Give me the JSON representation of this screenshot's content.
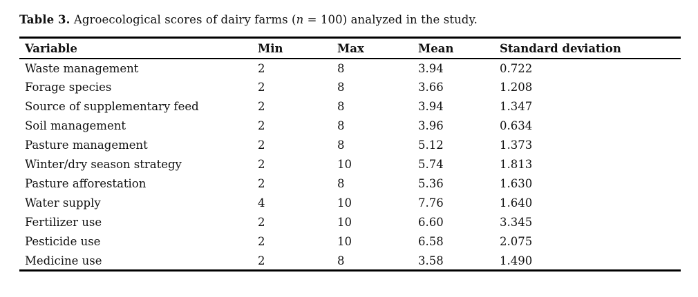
{
  "caption": {
    "label": "Table 3.",
    "text_before_n": " Agroecological scores of dairy farms (",
    "n_symbol": "n",
    "text_after_n": " = 100) analyzed in the study."
  },
  "table": {
    "columns": [
      "Variable",
      "Min",
      "Max",
      "Mean",
      "Standard deviation"
    ],
    "rows": [
      {
        "variable": "Waste management",
        "min": "2",
        "max": "8",
        "mean": "3.94",
        "sd": "0.722"
      },
      {
        "variable": "Forage species",
        "min": "2",
        "max": "8",
        "mean": "3.66",
        "sd": "1.208"
      },
      {
        "variable": "Source of supplementary feed",
        "min": "2",
        "max": "8",
        "mean": "3.94",
        "sd": "1.347"
      },
      {
        "variable": "Soil management",
        "min": "2",
        "max": "8",
        "mean": "3.96",
        "sd": "0.634"
      },
      {
        "variable": "Pasture management",
        "min": "2",
        "max": "8",
        "mean": "5.12",
        "sd": "1.373"
      },
      {
        "variable": "Winter/dry season strategy",
        "min": "2",
        "max": "10",
        "mean": "5.74",
        "sd": "1.813"
      },
      {
        "variable": "Pasture afforestation",
        "min": "2",
        "max": "8",
        "mean": "5.36",
        "sd": "1.630"
      },
      {
        "variable": "Water supply",
        "min": "4",
        "max": "10",
        "mean": "7.76",
        "sd": "1.640"
      },
      {
        "variable": "Fertilizer use",
        "min": "2",
        "max": "10",
        "mean": "6.60",
        "sd": "3.345"
      },
      {
        "variable": "Pesticide use",
        "min": "2",
        "max": "10",
        "mean": "6.58",
        "sd": "2.075"
      },
      {
        "variable": "Medicine use",
        "min": "2",
        "max": "8",
        "mean": "3.58",
        "sd": "1.490"
      }
    ]
  },
  "colors": {
    "text": "#111111",
    "rule": "#000000",
    "background": "#ffffff"
  }
}
